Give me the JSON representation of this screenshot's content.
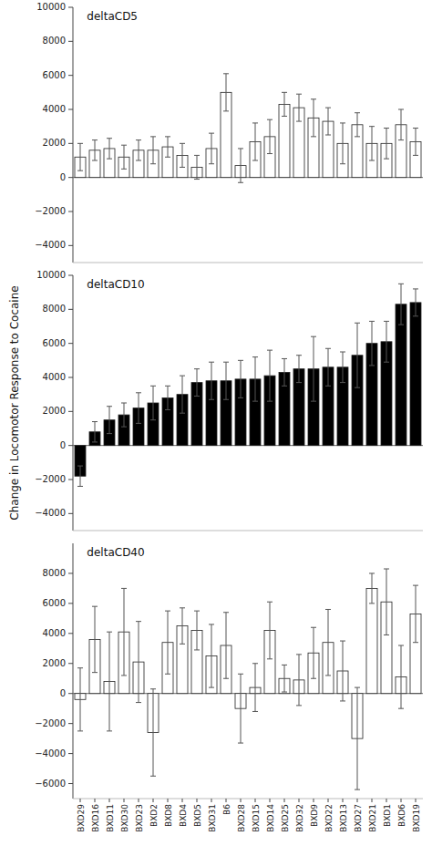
{
  "chart_data": [
    {
      "type": "bar",
      "title": "deltaCD5",
      "ylabel": "Change in Locomotor Response to Cocaine",
      "categories": [
        "BXD29",
        "BXD16",
        "BXD11",
        "BXD30",
        "BXD23",
        "BXD2",
        "BXD8",
        "BXD4",
        "BXD5",
        "BXD31",
        "B6",
        "BXD28",
        "BXD15",
        "BXD14",
        "BXD25",
        "BXD32",
        "BXD9",
        "BXD22",
        "BXD13",
        "BXD27",
        "BXD21",
        "BXD1",
        "BXD6",
        "BXD19"
      ],
      "values": [
        1200,
        1600,
        1700,
        1200,
        1600,
        1600,
        1800,
        1300,
        600,
        1700,
        5000,
        700,
        2100,
        2400,
        4300,
        4100,
        3500,
        3300,
        2000,
        3100,
        2000,
        2000,
        3100,
        2100
      ],
      "errors": [
        800,
        600,
        600,
        700,
        600,
        800,
        600,
        700,
        700,
        900,
        1100,
        1000,
        1100,
        1000,
        700,
        800,
        1100,
        800,
        1200,
        700,
        1000,
        900,
        900,
        800
      ],
      "color": "#ffffff",
      "ylim": [
        -5000,
        10000
      ],
      "yticks": [
        {
          "value": -4000,
          "label": "−4000"
        },
        {
          "value": -2000,
          "label": "−2000"
        },
        0,
        2000,
        4000,
        6000,
        8000,
        10000
      ],
      "grid": false,
      "tick_labels": "y"
    },
    {
      "type": "bar",
      "title": "deltaCD10",
      "categories": [
        "BXD29",
        "BXD16",
        "BXD11",
        "BXD30",
        "BXD23",
        "BXD2",
        "BXD8",
        "BXD4",
        "BXD5",
        "BXD31",
        "B6",
        "BXD28",
        "BXD15",
        "BXD14",
        "BXD25",
        "BXD32",
        "BXD9",
        "BXD22",
        "BXD13",
        "BXD27",
        "BXD21",
        "BXD1",
        "BXD6",
        "BXD19"
      ],
      "values": [
        -1800,
        800,
        1500,
        1800,
        2200,
        2500,
        2800,
        3000,
        3700,
        3800,
        3800,
        3900,
        3900,
        4100,
        4300,
        4500,
        4500,
        4600,
        4600,
        5300,
        6000,
        6100,
        8300,
        8400
      ],
      "errors": [
        600,
        600,
        800,
        700,
        900,
        1000,
        700,
        1100,
        800,
        1100,
        1100,
        1100,
        1300,
        1500,
        800,
        800,
        1900,
        1100,
        900,
        1900,
        1300,
        1200,
        1200,
        800
      ],
      "color": "#000000",
      "ylim": [
        -5000,
        10000
      ],
      "yticks": [
        {
          "value": -4000,
          "label": "−4000"
        },
        {
          "value": -2000,
          "label": "−2000"
        },
        0,
        2000,
        4000,
        6000,
        8000,
        10000
      ],
      "grid": false,
      "tick_labels": "y"
    },
    {
      "type": "bar",
      "title": "deltaCD40",
      "categories": [
        "BXD29",
        "BXD16",
        "BXD11",
        "BXD30",
        "BXD23",
        "BXD2",
        "BXD8",
        "BXD4",
        "BXD5",
        "BXD31",
        "B6",
        "BXD28",
        "BXD15",
        "BXD14",
        "BXD25",
        "BXD32",
        "BXD9",
        "BXD22",
        "BXD13",
        "BXD27",
        "BXD21",
        "BXD1",
        "BXD6",
        "BXD19"
      ],
      "values": [
        -400,
        3600,
        800,
        4100,
        2100,
        -2600,
        3400,
        4500,
        4200,
        2500,
        3200,
        -1000,
        400,
        4200,
        1000,
        900,
        2700,
        3400,
        1500,
        -3000,
        7000,
        6100,
        1100,
        5300
      ],
      "errors": [
        2100,
        2200,
        3300,
        2900,
        2700,
        2900,
        2100,
        1200,
        1300,
        2100,
        2200,
        2300,
        1600,
        1900,
        900,
        1700,
        1700,
        2200,
        2000,
        3400,
        1000,
        2200,
        2100,
        1900
      ],
      "color": "#ffffff",
      "ylim": [
        -7000,
        10000
      ],
      "yticks": [
        {
          "value": -6000,
          "label": "−6000"
        },
        {
          "value": -4000,
          "label": "−4000"
        },
        {
          "value": -2000,
          "label": "−2000"
        },
        0,
        2000,
        4000,
        6000,
        8000
      ],
      "grid": false
    }
  ]
}
